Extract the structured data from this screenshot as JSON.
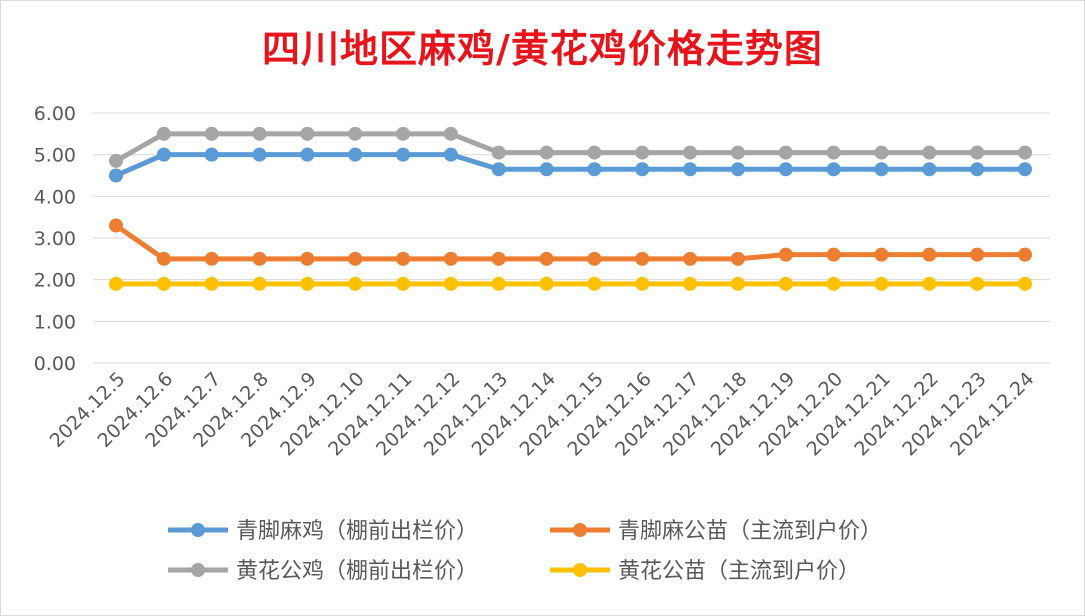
{
  "chart_data": {
    "type": "line",
    "title": "四川地区麻鸡/黄花鸡价格走势图",
    "x": [
      "2024.12.5",
      "2024.12.6",
      "2024.12.7",
      "2024.12.8",
      "2024.12.9",
      "2024.12.10",
      "2024.12.11",
      "2024.12.12",
      "2024.12.13",
      "2024.12.14",
      "2024.12.15",
      "2024.12.16",
      "2024.12.17",
      "2024.12.18",
      "2024.12.19",
      "2024.12.20",
      "2024.12.21",
      "2024.12.22",
      "2024.12.23",
      "2024.12.24"
    ],
    "ylim": [
      0,
      6
    ],
    "yticks": [
      "0.00",
      "1.00",
      "2.00",
      "3.00",
      "4.00",
      "5.00",
      "6.00"
    ],
    "grid": true,
    "legend_position": "bottom",
    "series": [
      {
        "name": "青脚麻鸡（棚前出栏价）",
        "color": "#5b9bd5",
        "values": [
          4.5,
          5.0,
          5.0,
          5.0,
          5.0,
          5.0,
          5.0,
          5.0,
          4.65,
          4.65,
          4.65,
          4.65,
          4.65,
          4.65,
          4.65,
          4.65,
          4.65,
          4.65,
          4.65,
          4.65
        ]
      },
      {
        "name": "青脚麻公苗（主流到户价）",
        "color": "#ed7d31",
        "values": [
          3.3,
          2.5,
          2.5,
          2.5,
          2.5,
          2.5,
          2.5,
          2.5,
          2.5,
          2.5,
          2.5,
          2.5,
          2.5,
          2.5,
          2.6,
          2.6,
          2.6,
          2.6,
          2.6,
          2.6
        ]
      },
      {
        "name": "黄花公鸡（棚前出栏价）",
        "color": "#a5a5a5",
        "values": [
          4.85,
          5.5,
          5.5,
          5.5,
          5.5,
          5.5,
          5.5,
          5.5,
          5.05,
          5.05,
          5.05,
          5.05,
          5.05,
          5.05,
          5.05,
          5.05,
          5.05,
          5.05,
          5.05,
          5.05
        ]
      },
      {
        "name": "黄花公苗（主流到户价）",
        "color": "#ffc000",
        "values": [
          1.9,
          1.9,
          1.9,
          1.9,
          1.9,
          1.9,
          1.9,
          1.9,
          1.9,
          1.9,
          1.9,
          1.9,
          1.9,
          1.9,
          1.9,
          1.9,
          1.9,
          1.9,
          1.9,
          1.9
        ]
      }
    ]
  }
}
